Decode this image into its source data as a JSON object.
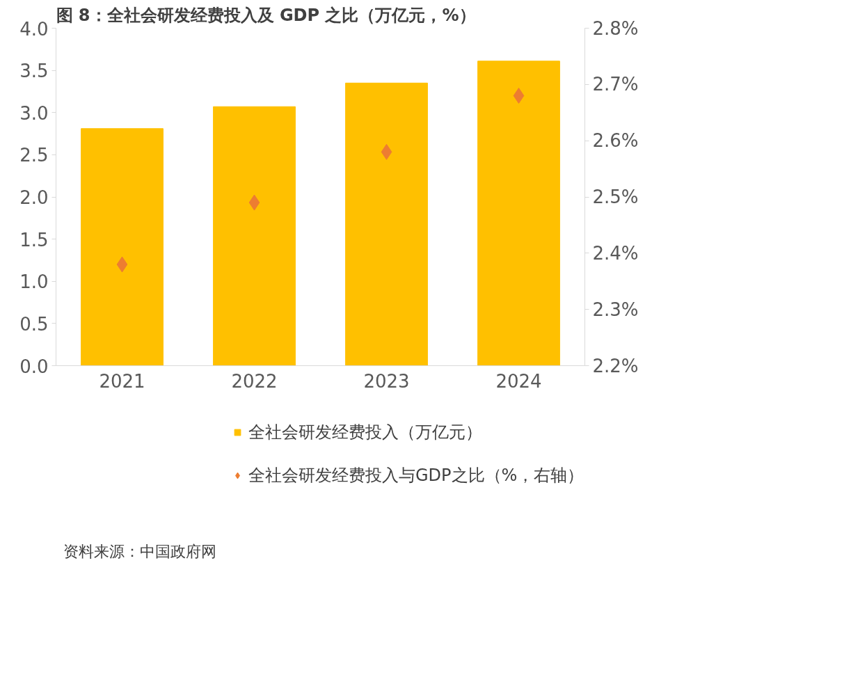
{
  "chart_data": {
    "type": "bar",
    "title": "图 8：全社会研发经费投入及 GDP 之比（万亿元，%）",
    "categories": [
      "2021",
      "2022",
      "2023",
      "2024"
    ],
    "series": [
      {
        "name": "全社会研发经费投入（万亿元）",
        "color": "#ffc000",
        "values": [
          2.81,
          3.07,
          3.35,
          3.61
        ]
      },
      {
        "name": "全社会研发经费投入与GDP之比（%，右轴）",
        "type": "scatter",
        "axis": "y2",
        "marker": "diamond",
        "color": "#ed7d31",
        "values": [
          2.38,
          2.49,
          2.58,
          2.68
        ]
      }
    ],
    "ylim": [
      0,
      4
    ],
    "yticks": [
      {
        "value": 0,
        "label": "0.0"
      },
      {
        "value": 0.5,
        "label": "0.5"
      },
      {
        "value": 1,
        "label": "1.0"
      },
      {
        "value": 1.5,
        "label": "1.5"
      },
      {
        "value": 2,
        "label": "2.0"
      },
      {
        "value": 2.5,
        "label": "2.5"
      },
      {
        "value": 3,
        "label": "3.0"
      },
      {
        "value": 3.5,
        "label": "3.5"
      },
      {
        "value": 4,
        "label": "4.0"
      }
    ],
    "y2lim": [
      2.2,
      2.8
    ],
    "y2ticks": [
      {
        "value": 2.2,
        "label": "2.2%"
      },
      {
        "value": 2.3,
        "label": "2.3%"
      },
      {
        "value": 2.4,
        "label": "2.4%"
      },
      {
        "value": 2.5,
        "label": "2.5%"
      },
      {
        "value": 2.6,
        "label": "2.6%"
      },
      {
        "value": 2.7,
        "label": "2.7%"
      },
      {
        "value": 2.8,
        "label": "2.8%"
      }
    ],
    "grid": false,
    "legend": "bottom",
    "annotations": [
      "资料来源：中国政府网"
    ]
  }
}
